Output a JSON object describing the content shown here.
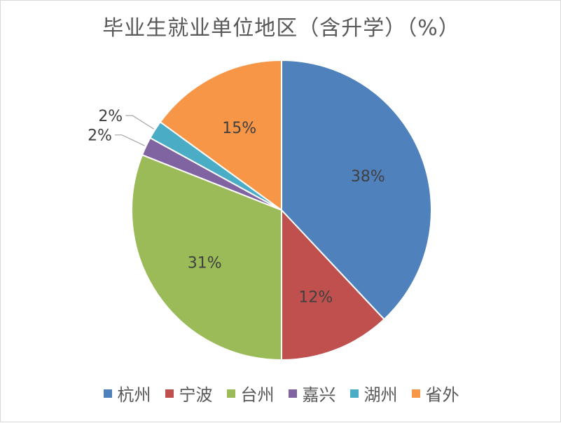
{
  "chart_data": {
    "type": "pie",
    "title": "毕业生就业单位地区（含升学）（%）",
    "categories": [
      "杭州",
      "宁波",
      "台州",
      "嘉兴",
      "湖州",
      "省外"
    ],
    "values": [
      38,
      12,
      31,
      2,
      2,
      15
    ],
    "data_labels": [
      "38%",
      "12%",
      "31%",
      "2%",
      "2%",
      "15%"
    ],
    "colors": [
      "#4f81bd",
      "#c0504d",
      "#9bbb59",
      "#8064a2",
      "#4bacc6",
      "#f79646"
    ],
    "legend_position": "bottom",
    "start_angle_deg": 0,
    "direction": "clockwise"
  }
}
